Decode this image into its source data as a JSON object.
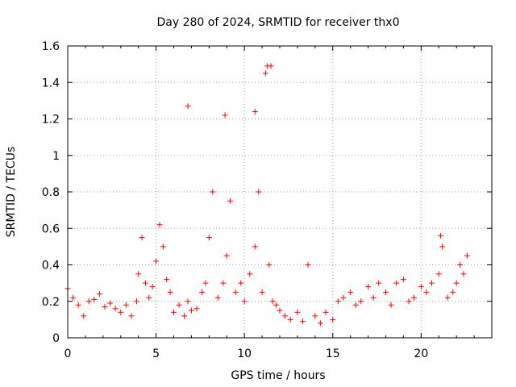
{
  "chart_data": {
    "type": "scatter",
    "title": "Day 280 of 2024, SRMTID for receiver thx0",
    "xlabel": "GPS time / hours",
    "ylabel": "SRMTID / TECUs",
    "xlim": [
      0,
      24
    ],
    "ylim": [
      0,
      1.6
    ],
    "grid": true,
    "legend": "none",
    "marker": "+",
    "colors": {
      "series": "#ff0000",
      "grid": "#a0a0a0",
      "axis": "#000000"
    },
    "x_ticks": [
      0,
      5,
      10,
      15,
      20
    ],
    "x_tick_labels": [
      "0",
      "5",
      "10",
      "15",
      "20"
    ],
    "y_ticks": [
      0,
      0.2,
      0.4,
      0.6,
      0.8,
      1.0,
      1.2,
      1.4,
      1.6
    ],
    "y_tick_labels": [
      "0",
      "0.2",
      "0.4",
      "0.6",
      "0.8",
      "1",
      "1.2",
      "1.4",
      "1.6"
    ],
    "series": [
      {
        "name": "SRMTID",
        "x": [
          0.0,
          0.3,
          0.6,
          0.9,
          1.2,
          1.5,
          1.8,
          2.1,
          2.4,
          2.7,
          3.0,
          3.3,
          3.6,
          3.9,
          4.0,
          4.2,
          4.4,
          4.6,
          4.8,
          5.0,
          5.2,
          5.4,
          5.6,
          5.8,
          6.0,
          6.3,
          6.6,
          6.8,
          7.0,
          7.3,
          7.6,
          7.8,
          8.0,
          8.2,
          8.5,
          8.8,
          9.0,
          9.2,
          9.5,
          9.8,
          10.0,
          10.3,
          10.6,
          10.8,
          11.0,
          11.2,
          11.4,
          11.6,
          11.8,
          12.0,
          12.3,
          12.6,
          13.0,
          13.3,
          13.6,
          14.0,
          14.3,
          14.6,
          15.0,
          15.3,
          15.6,
          16.0,
          16.3,
          16.6,
          17.0,
          17.3,
          17.6,
          18.0,
          18.3,
          18.6,
          19.0,
          19.3,
          19.6,
          20.0,
          20.3,
          20.6,
          21.0,
          21.2,
          21.5,
          21.8,
          22.0,
          22.2,
          22.4,
          22.6
        ],
        "y": [
          0.27,
          0.22,
          0.18,
          0.12,
          0.2,
          0.21,
          0.24,
          0.17,
          0.19,
          0.16,
          0.14,
          0.18,
          0.12,
          0.2,
          0.35,
          0.55,
          0.3,
          0.22,
          0.28,
          0.42,
          0.62,
          0.5,
          0.32,
          0.25,
          0.14,
          0.18,
          0.12,
          0.2,
          0.15,
          0.16,
          0.25,
          0.3,
          0.55,
          0.8,
          0.22,
          0.3,
          0.45,
          0.75,
          0.25,
          0.3,
          0.2,
          0.35,
          0.5,
          0.8,
          0.25,
          1.45,
          0.4,
          0.2,
          0.18,
          0.15,
          0.12,
          0.1,
          0.14,
          0.09,
          0.4,
          0.12,
          0.08,
          0.14,
          0.1,
          0.2,
          0.22,
          0.25,
          0.18,
          0.2,
          0.28,
          0.22,
          0.3,
          0.25,
          0.18,
          0.3,
          0.32,
          0.2,
          0.22,
          0.28,
          0.25,
          0.3,
          0.35,
          0.5,
          0.22,
          0.25,
          0.3,
          0.4,
          0.35,
          0.45
        ],
        "notable_points": [
          {
            "x": 6.8,
            "y": 1.27
          },
          {
            "x": 8.9,
            "y": 1.22
          },
          {
            "x": 10.6,
            "y": 1.24
          },
          {
            "x": 11.3,
            "y": 1.49
          },
          {
            "x": 11.5,
            "y": 1.49
          },
          {
            "x": 21.1,
            "y": 0.56
          }
        ]
      }
    ]
  }
}
